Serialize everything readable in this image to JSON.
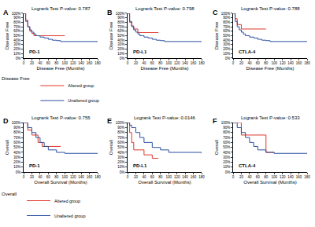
{
  "chart_data": [
    {
      "type": "line",
      "title": "Logrank Test P-value: 0.787",
      "x_label": "Disease Free (Months)",
      "y_label": "Disease Free",
      "annotations": [
        "A",
        "PD-1"
      ],
      "legend_title": "Disease Free",
      "xlim": [
        0,
        180
      ],
      "xticks": [
        0,
        20,
        40,
        60,
        80,
        100,
        120,
        140,
        160,
        180
      ],
      "ylim": [
        0,
        100
      ],
      "yticks": [
        {
          "value": 0,
          "label": "0%"
        },
        {
          "value": 10,
          "label": "10%"
        },
        {
          "value": 20,
          "label": "20%"
        },
        {
          "value": 30,
          "label": "30%"
        },
        {
          "value": 40,
          "label": "40%"
        },
        {
          "value": 50,
          "label": "50%"
        },
        {
          "value": 60,
          "label": "60%"
        },
        {
          "value": 70,
          "label": "70%"
        },
        {
          "value": 80,
          "label": "80%"
        },
        {
          "value": 90,
          "label": "90%"
        },
        {
          "value": 100,
          "label": "100%"
        }
      ],
      "grid": false,
      "series": [
        {
          "name": "Altered group",
          "color": "#e0352b",
          "x": [
            0,
            5,
            10,
            15,
            20,
            25,
            100
          ],
          "values": [
            100,
            85,
            70,
            60,
            55,
            50,
            50
          ]
        },
        {
          "name": "Unaltered group",
          "color": "#2a4fa0",
          "x": [
            0,
            5,
            10,
            15,
            20,
            25,
            30,
            40,
            50,
            60,
            70,
            80,
            90,
            180
          ],
          "values": [
            100,
            82,
            70,
            63,
            58,
            54,
            50,
            47,
            45,
            42,
            40,
            39,
            37,
            37
          ]
        }
      ]
    },
    {
      "type": "line",
      "title": "Logrank Test P-value: 0.798",
      "x_label": "Disease Free (Months)",
      "y_label": "Disease Free",
      "annotations": [
        "B",
        "PD-L1"
      ],
      "xlim": [
        0,
        180
      ],
      "xticks": [
        0,
        20,
        40,
        60,
        80,
        100,
        120,
        140,
        160,
        180
      ],
      "ylim": [
        0,
        100
      ],
      "yticks": [
        {
          "value": 0,
          "label": "0%"
        },
        {
          "value": 10,
          "label": "10%"
        },
        {
          "value": 20,
          "label": "20%"
        },
        {
          "value": 30,
          "label": "30%"
        },
        {
          "value": 40,
          "label": "40%"
        },
        {
          "value": 50,
          "label": "50%"
        },
        {
          "value": 60,
          "label": "60%"
        },
        {
          "value": 70,
          "label": "70%"
        },
        {
          "value": 80,
          "label": "80%"
        },
        {
          "value": 90,
          "label": "90%"
        },
        {
          "value": 100,
          "label": "100%"
        }
      ],
      "grid": false,
      "series": [
        {
          "name": "Altered group",
          "color": "#e0352b",
          "x": [
            0,
            5,
            10,
            15,
            25,
            75
          ],
          "values": [
            100,
            80,
            72,
            65,
            57,
            57
          ]
        },
        {
          "name": "Unaltered group",
          "color": "#2a4fa0",
          "x": [
            0,
            5,
            10,
            15,
            20,
            25,
            30,
            40,
            50,
            60,
            70,
            80,
            90,
            180
          ],
          "values": [
            100,
            82,
            70,
            63,
            58,
            54,
            50,
            47,
            45,
            42,
            40,
            39,
            37,
            37
          ]
        }
      ]
    },
    {
      "type": "line",
      "title": "Logrank Test P-value: 0.788",
      "x_label": "Disease Free (Months)",
      "y_label": "Disease Free",
      "annotations": [
        "C",
        "CTLA-4"
      ],
      "xlim": [
        0,
        180
      ],
      "xticks": [
        0,
        20,
        40,
        60,
        80,
        100,
        120,
        140,
        160,
        180
      ],
      "ylim": [
        0,
        100
      ],
      "yticks": [
        {
          "value": 0,
          "label": "0%"
        },
        {
          "value": 10,
          "label": "10%"
        },
        {
          "value": 20,
          "label": "20%"
        },
        {
          "value": 30,
          "label": "30%"
        },
        {
          "value": 40,
          "label": "40%"
        },
        {
          "value": 50,
          "label": "50%"
        },
        {
          "value": 60,
          "label": "60%"
        },
        {
          "value": 70,
          "label": "70%"
        },
        {
          "value": 80,
          "label": "80%"
        },
        {
          "value": 90,
          "label": "90%"
        },
        {
          "value": 100,
          "label": "100%"
        }
      ],
      "grid": false,
      "series": [
        {
          "name": "Altered group",
          "color": "#e0352b",
          "x": [
            0,
            5,
            10,
            20,
            80
          ],
          "values": [
            100,
            88,
            75,
            65,
            65
          ]
        },
        {
          "name": "Unaltered group",
          "color": "#2a4fa0",
          "x": [
            0,
            5,
            10,
            15,
            20,
            25,
            30,
            40,
            50,
            60,
            70,
            80,
            90,
            180
          ],
          "values": [
            100,
            82,
            70,
            63,
            58,
            54,
            50,
            47,
            45,
            42,
            40,
            39,
            37,
            37
          ]
        }
      ]
    },
    {
      "type": "line",
      "title": "Logrank Test P-value: 0.755",
      "x_label": "Overall Survival (Months)",
      "y_label": "Overall",
      "annotations": [
        "D",
        "PD-1"
      ],
      "legend_title": "Overall",
      "xlim": [
        0,
        180
      ],
      "xticks": [
        0,
        20,
        40,
        60,
        80,
        100,
        120,
        140,
        160,
        180
      ],
      "ylim": [
        0,
        100
      ],
      "yticks": [
        {
          "value": 0,
          "label": "0%"
        },
        {
          "value": 10,
          "label": "10%"
        },
        {
          "value": 20,
          "label": "20%"
        },
        {
          "value": 30,
          "label": "30%"
        },
        {
          "value": 40,
          "label": "40%"
        },
        {
          "value": 50,
          "label": "50%"
        },
        {
          "value": 60,
          "label": "60%"
        },
        {
          "value": 70,
          "label": "70%"
        },
        {
          "value": 80,
          "label": "80%"
        },
        {
          "value": 90,
          "label": "90%"
        },
        {
          "value": 100,
          "label": "100%"
        }
      ],
      "grid": false,
      "series": [
        {
          "name": "Altered group",
          "color": "#e0352b",
          "x": [
            0,
            10,
            20,
            35,
            45,
            90
          ],
          "values": [
            100,
            85,
            75,
            60,
            52,
            52
          ]
        },
        {
          "name": "Unaltered group",
          "color": "#2a4fa0",
          "x": [
            0,
            10,
            20,
            30,
            40,
            50,
            60,
            80,
            100,
            180
          ],
          "values": [
            100,
            90,
            80,
            70,
            60,
            52,
            45,
            40,
            38,
            38
          ]
        }
      ]
    },
    {
      "type": "line",
      "title": "Logrank Test P-value: 0.0146",
      "x_label": "Overall Survival (Months)",
      "y_label": "Overall",
      "annotations": [
        "E",
        "PD-L1"
      ],
      "xlim": [
        0,
        180
      ],
      "xticks": [
        0,
        20,
        40,
        60,
        80,
        100,
        120,
        140,
        160,
        180
      ],
      "ylim": [
        0,
        100
      ],
      "yticks": [
        {
          "value": 0,
          "label": "0%"
        },
        {
          "value": 10,
          "label": "10%"
        },
        {
          "value": 20,
          "label": "20%"
        },
        {
          "value": 30,
          "label": "30%"
        },
        {
          "value": 40,
          "label": "40%"
        },
        {
          "value": 50,
          "label": "50%"
        },
        {
          "value": 60,
          "label": "60%"
        },
        {
          "value": 70,
          "label": "70%"
        },
        {
          "value": 80,
          "label": "80%"
        },
        {
          "value": 90,
          "label": "90%"
        },
        {
          "value": 100,
          "label": "100%"
        }
      ],
      "grid": false,
      "series": [
        {
          "name": "Altered group",
          "color": "#e0352b",
          "x": [
            0,
            5,
            10,
            15,
            40,
            60,
            75
          ],
          "values": [
            100,
            80,
            60,
            45,
            35,
            28,
            28
          ]
        },
        {
          "name": "Unaltered group",
          "color": "#2a4fa0",
          "x": [
            0,
            5,
            10,
            20,
            30,
            40,
            60,
            80,
            100,
            180
          ],
          "values": [
            100,
            95,
            90,
            80,
            70,
            60,
            50,
            45,
            40,
            38
          ]
        }
      ]
    },
    {
      "type": "line",
      "title": "Logrank Test P-value: 0.533",
      "x_label": "Overall Survival (Months)",
      "y_label": "Overall",
      "annotations": [
        "F",
        "CTLA-4"
      ],
      "xlim": [
        0,
        180
      ],
      "xticks": [
        0,
        20,
        40,
        60,
        80,
        100,
        120,
        140,
        160,
        180
      ],
      "ylim": [
        0,
        100
      ],
      "yticks": [
        {
          "value": 0,
          "label": "0%"
        },
        {
          "value": 10,
          "label": "10%"
        },
        {
          "value": 20,
          "label": "20%"
        },
        {
          "value": 30,
          "label": "30%"
        },
        {
          "value": 40,
          "label": "40%"
        },
        {
          "value": 50,
          "label": "50%"
        },
        {
          "value": 60,
          "label": "60%"
        },
        {
          "value": 70,
          "label": "70%"
        },
        {
          "value": 80,
          "label": "80%"
        },
        {
          "value": 90,
          "label": "90%"
        },
        {
          "value": 100,
          "label": "100%"
        }
      ],
      "grid": false,
      "series": [
        {
          "name": "Altered group",
          "color": "#e0352b",
          "x": [
            0,
            20,
            80,
            100
          ],
          "values": [
            100,
            75,
            40,
            40
          ]
        },
        {
          "name": "Unaltered group",
          "color": "#2a4fa0",
          "x": [
            0,
            10,
            20,
            30,
            40,
            50,
            60,
            80,
            100,
            180
          ],
          "values": [
            100,
            90,
            80,
            70,
            60,
            52,
            45,
            40,
            38,
            38
          ]
        }
      ]
    }
  ]
}
